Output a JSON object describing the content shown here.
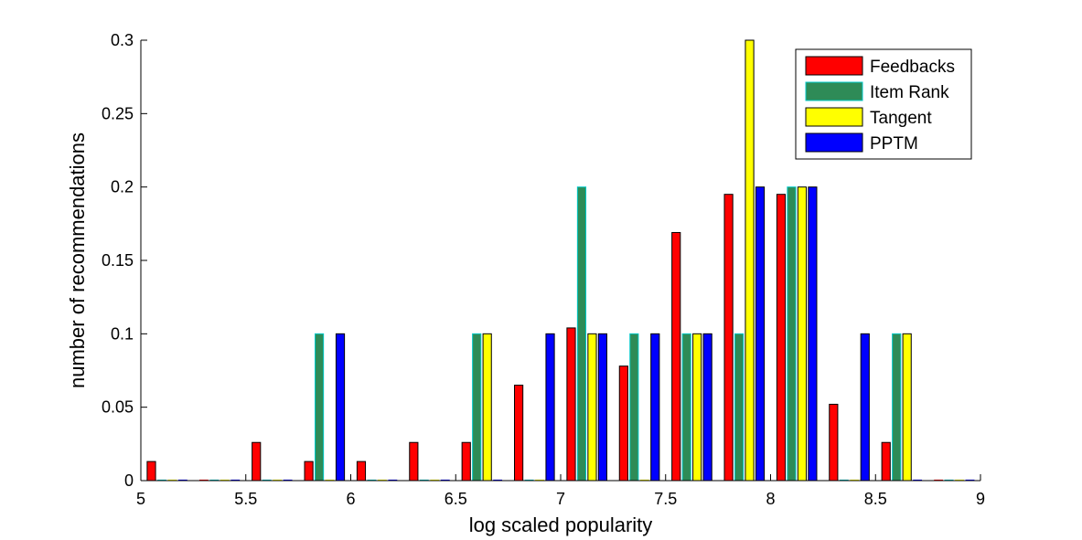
{
  "chart_data": {
    "type": "bar",
    "title": "",
    "xlabel": "log scaled popularity",
    "ylabel": "number of recommendations",
    "xlim": [
      5,
      9
    ],
    "ylim": [
      0,
      0.3
    ],
    "xticks": [
      5,
      5.5,
      6,
      6.5,
      7,
      7.5,
      8,
      8.5,
      9
    ],
    "xtick_labels": [
      "5",
      "5.5",
      "6",
      "6.5",
      "7",
      "7.5",
      "8",
      "8.5",
      "9"
    ],
    "yticks": [
      0,
      0.05,
      0.1,
      0.15,
      0.2,
      0.25,
      0.3
    ],
    "ytick_labels": [
      "0",
      "0.05",
      "0.1",
      "0.15",
      "0.2",
      "0.25",
      "0.3"
    ],
    "grid": false,
    "legend_position": "top-right",
    "bin_centers": [
      5.125,
      5.375,
      5.625,
      5.875,
      6.125,
      6.375,
      6.625,
      6.875,
      7.125,
      7.375,
      7.625,
      7.875,
      8.125,
      8.375,
      8.625,
      8.875
    ],
    "series": [
      {
        "name": "Feedbacks",
        "color": "#ff0000",
        "values": [
          0.013,
          0,
          0.026,
          0.013,
          0.013,
          0.026,
          0.026,
          0.065,
          0.104,
          0.078,
          0.169,
          0.195,
          0.195,
          0.052,
          0.026,
          0
        ]
      },
      {
        "name": "Item Rank",
        "color": "#2e8b57",
        "edge": "#00c8c8",
        "values": [
          0,
          0,
          0,
          0.1,
          0,
          0,
          0.1,
          0,
          0.2,
          0.1,
          0.1,
          0.1,
          0.2,
          0,
          0.1,
          0
        ]
      },
      {
        "name": "Tangent",
        "color": "#ffff00",
        "values": [
          0,
          0,
          0,
          0,
          0,
          0,
          0.1,
          0,
          0.1,
          0,
          0.1,
          0.3,
          0.2,
          0,
          0.1,
          0
        ]
      },
      {
        "name": "PPTM",
        "color": "#0000ff",
        "values": [
          0,
          0,
          0,
          0.1,
          0,
          0,
          0,
          0.1,
          0.1,
          0.1,
          0.1,
          0.2,
          0.2,
          0.1,
          0,
          0
        ]
      }
    ]
  }
}
